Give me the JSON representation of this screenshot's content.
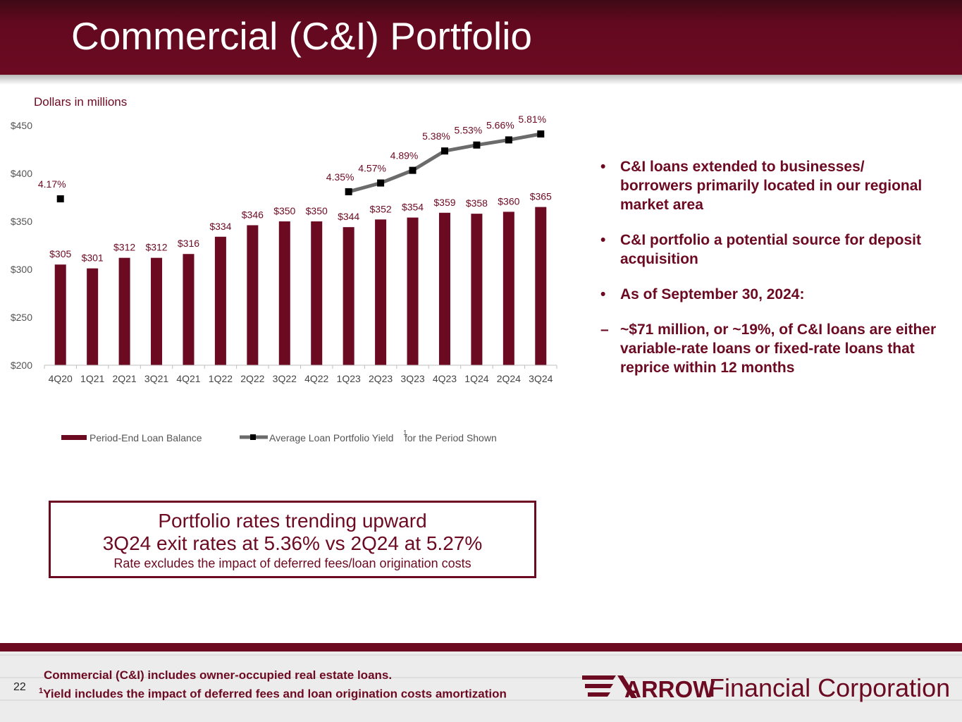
{
  "slide": {
    "title": "Commercial (C&I) Portfolio",
    "page_number": "22"
  },
  "chart_data": {
    "type": "bar",
    "subtitle": "Dollars in millions",
    "categories": [
      "4Q20",
      "1Q21",
      "2Q21",
      "3Q21",
      "4Q21",
      "1Q22",
      "2Q22",
      "3Q22",
      "4Q22",
      "1Q23",
      "2Q23",
      "3Q23",
      "4Q23",
      "1Q24",
      "2Q24",
      "3Q24"
    ],
    "series": [
      {
        "name": "Period-End Loan Balance",
        "kind": "bar",
        "color": "#6c0a22",
        "values": [
          305,
          301,
          312,
          312,
          316,
          334,
          346,
          350,
          350,
          344,
          352,
          354,
          359,
          358,
          360,
          365
        ],
        "labels": [
          "$305",
          "$301",
          "$312",
          "$312",
          "$316",
          "$334",
          "$346",
          "$350",
          "$350",
          "$344",
          "$352",
          "$354",
          "$359",
          "$358",
          "$360",
          "$365"
        ]
      },
      {
        "name": "Average Loan Portfolio Yield",
        "name_superscript": "1",
        "name_suffix": " for the Period Shown",
        "kind": "line",
        "color": "#6b6b6b",
        "values": [
          4.17,
          null,
          null,
          null,
          null,
          null,
          null,
          null,
          null,
          4.35,
          4.57,
          4.89,
          5.38,
          5.53,
          5.66,
          5.81
        ],
        "labels": [
          "4.17%",
          "",
          "",
          "",
          "",
          "",
          "",
          "",
          "",
          "4.35%",
          "4.57%",
          "4.89%",
          "5.38%",
          "5.53%",
          "5.66%",
          "5.81%"
        ]
      }
    ],
    "ylim": [
      200,
      450
    ],
    "y_ticks": [
      "$200",
      "$250",
      "$300",
      "$350",
      "$400",
      "$450"
    ],
    "legend_position": "bottom"
  },
  "bullets": [
    {
      "mark": "•",
      "text": "C&I loans extended to businesses/ borrowers primarily located in our regional market area"
    },
    {
      "mark": "•",
      "text": "C&I portfolio a potential source for deposit acquisition"
    },
    {
      "mark": "•",
      "text": "As of September 30, 2024:"
    },
    {
      "mark": "–",
      "text": "~$71 million, or ~19%,  of C&I loans are either variable-rate loans or fixed-rate loans that reprice within 12 months"
    }
  ],
  "callout": {
    "line1": "Portfolio rates trending upward",
    "line2": "3Q24 exit rates at 5.36% vs 2Q24 at 5.27%",
    "line3": "Rate excludes the impact of deferred fees/loan origination costs"
  },
  "footer": {
    "note1": "Commercial (C&I) includes owner-occupied real estate loans.",
    "note2_superscript": "1",
    "note2": "Yield includes the impact of deferred fees and loan origination costs amortization",
    "logo_mark": "ARROW",
    "logo_text": "Financial Corporation"
  },
  "colors": {
    "brand": "#6c0a22",
    "line": "#6b6b6b"
  }
}
